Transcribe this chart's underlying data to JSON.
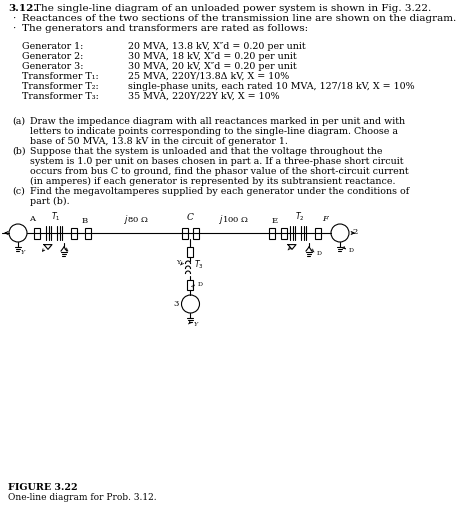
{
  "bg_color": "#ffffff",
  "text_color": "#000000",
  "figure_label": "FIGURE 3.22",
  "figure_caption": "One-line diagram for Prob. 3.12.",
  "title_num": "3.12.",
  "title_rest": " The single-line diagram of an unloaded power system is shown in Fig. 3.22.",
  "line2": "Reactances of the two sections of the transmission line are shown on the diagram.",
  "line3": "The generators and transformers are rated as follows:",
  "specs_left": [
    "Generator 1:",
    "Generator 2:",
    "Generator 3:",
    "Transformer T₁:",
    "Transformer T₂:",
    "Transformer T₃:"
  ],
  "specs_right": [
    "20 MVA, 13.8 kV, X″d = 0.20 per unit",
    "30 MVA, 18 kV, X″d = 0.20 per unit",
    "30 MVA, 20 kV, X″d = 0.20 per unit",
    "25 MVA, 220Y/13.8Δ kV, X = 10%",
    "single-phase units, each rated 10 MVA, 127/18 kV, X = 10%",
    "35 MVA, 220Y/22Y kV, X = 10%"
  ],
  "part_a_label": "(a)",
  "part_a_lines": [
    "Draw the impedance diagram with all reactances marked in per unit and with",
    "letters to indicate points corresponding to the single-line diagram. Choose a",
    "base of 50 MVA, 13.8 kV in the circuit of generator 1."
  ],
  "part_b_label": "(b)",
  "part_b_lines": [
    "Suppose that the system is unloaded and that the voltage throughout the",
    "system is 1.0 per unit on bases chosen in part a. If a three-phase short circuit",
    "occurs from bus C to ground, find the phasor value of the short-circuit current",
    "(in amperes) if each generator is represented by its subtransient reactance."
  ],
  "part_c_label": "(c)",
  "part_c_lines": [
    "Find the megavoltamperes supplied by each generator under the conditions of",
    "part (b)."
  ],
  "j80": "j80 Ω",
  "j100": "j100 Ω"
}
